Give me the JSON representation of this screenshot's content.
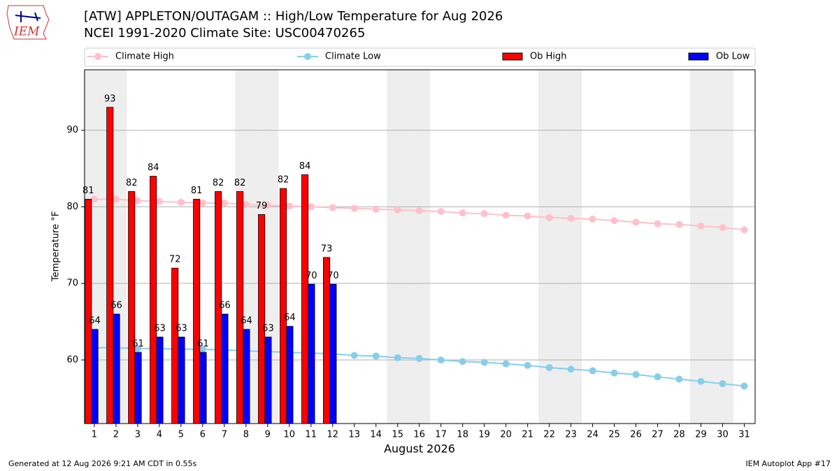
{
  "chart_data": {
    "type": "bar",
    "title": "[ATW] APPLETON/OUTAGAM :: High/Low Temperature for Aug 2026",
    "subtitle": "NCEI 1991-2020 Climate Site: USC00470265",
    "logo_text": "IEM",
    "xlabel": "August 2026",
    "ylabel": "Temperature °F",
    "footer_left": "Generated at 12 Aug 2026 9:21 AM CDT in 0.55s",
    "footer_right": "IEM Autoplot App #17",
    "x": [
      1,
      2,
      3,
      4,
      5,
      6,
      7,
      8,
      9,
      10,
      11,
      12,
      13,
      14,
      15,
      16,
      17,
      18,
      19,
      20,
      21,
      22,
      23,
      24,
      25,
      26,
      27,
      28,
      29,
      30,
      31
    ],
    "xlim": [
      0.55,
      31.5
    ],
    "xticks": [
      1,
      2,
      3,
      4,
      5,
      6,
      7,
      8,
      9,
      10,
      11,
      12,
      13,
      14,
      15,
      16,
      17,
      18,
      19,
      20,
      21,
      22,
      23,
      24,
      25,
      26,
      27,
      28,
      29,
      30,
      31
    ],
    "ylim": [
      51.7,
      97.9
    ],
    "yticks": [
      60,
      70,
      80,
      90
    ],
    "grid": true,
    "series": [
      {
        "name": "Climate High",
        "type": "line",
        "color": "#ffc0cb",
        "values": [
          81.0,
          81.0,
          80.8,
          80.7,
          80.6,
          80.5,
          80.5,
          80.3,
          80.2,
          80.1,
          80.0,
          79.9,
          79.8,
          79.7,
          79.6,
          79.5,
          79.4,
          79.2,
          79.1,
          78.9,
          78.8,
          78.6,
          78.5,
          78.4,
          78.2,
          78.0,
          77.8,
          77.7,
          77.5,
          77.3,
          77.0
        ]
      },
      {
        "name": "Climate Low",
        "type": "line",
        "color": "#87ceeb",
        "values": [
          61.6,
          61.6,
          61.5,
          61.5,
          61.4,
          61.4,
          61.3,
          61.2,
          61.1,
          61.0,
          60.9,
          60.8,
          60.6,
          60.5,
          60.3,
          60.2,
          60.0,
          59.8,
          59.7,
          59.5,
          59.3,
          59.0,
          58.8,
          58.6,
          58.3,
          58.1,
          57.8,
          57.5,
          57.2,
          56.9,
          56.6
        ]
      },
      {
        "name": "Ob High",
        "type": "bar",
        "color": "#ff0000",
        "values": [
          81,
          93,
          82,
          84,
          72,
          81,
          82,
          82,
          79,
          82.4,
          84.2,
          73.4,
          null,
          null,
          null,
          null,
          null,
          null,
          null,
          null,
          null,
          null,
          null,
          null,
          null,
          null,
          null,
          null,
          null,
          null,
          null
        ],
        "value_labels": [
          "81",
          "93",
          "82",
          "84",
          "72",
          "81",
          "82",
          "82",
          "79",
          "82",
          "84",
          "73",
          null,
          null,
          null,
          null,
          null,
          null,
          null,
          null,
          null,
          null,
          null,
          null,
          null,
          null,
          null,
          null,
          null,
          null,
          null
        ]
      },
      {
        "name": "Ob Low",
        "type": "bar",
        "color": "#0000ff",
        "values": [
          64,
          66,
          61,
          63,
          63,
          61,
          66,
          64,
          63,
          64.4,
          69.9,
          69.9,
          null,
          null,
          null,
          null,
          null,
          null,
          null,
          null,
          null,
          null,
          null,
          null,
          null,
          null,
          null,
          null,
          null,
          null,
          null
        ],
        "value_labels": [
          "64",
          "66",
          "61",
          "63",
          "63",
          "61",
          "66",
          "64",
          "63",
          "64",
          "70",
          "70",
          null,
          null,
          null,
          null,
          null,
          null,
          null,
          null,
          null,
          null,
          null,
          null,
          null,
          null,
          null,
          null,
          null,
          null,
          null
        ]
      }
    ]
  }
}
